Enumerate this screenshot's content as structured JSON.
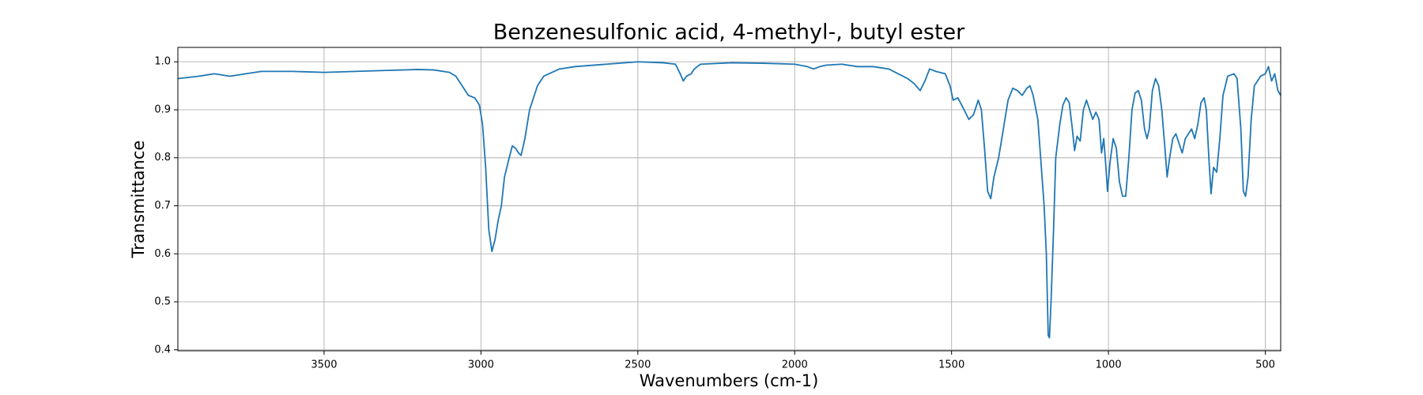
{
  "chart_data": {
    "type": "line",
    "title": "Benzenesulfonic acid, 4-methyl-, butyl ester",
    "x_label": "Wavenumbers (cm-1)",
    "y_label": "Transmittance",
    "color": "#1f77b4",
    "grid": true,
    "xlim": [
      3966,
      451
    ],
    "ylim": [
      0.398,
      1.03
    ],
    "xticks": [
      3500,
      3000,
      2500,
      2000,
      1500,
      1000,
      500
    ],
    "yticks": [
      0.4,
      0.5,
      0.6,
      0.7,
      0.8,
      0.9,
      {
        "value": 1.0,
        "label": "1.0"
      }
    ],
    "x": [
      3966,
      3900,
      3850,
      3800,
      3750,
      3700,
      3650,
      3600,
      3500,
      3400,
      3300,
      3200,
      3150,
      3100,
      3080,
      3060,
      3040,
      3020,
      3005,
      2995,
      2985,
      2975,
      2965,
      2955,
      2945,
      2935,
      2925,
      2910,
      2900,
      2890,
      2880,
      2872,
      2860,
      2845,
      2820,
      2800,
      2750,
      2700,
      2600,
      2500,
      2420,
      2380,
      2365,
      2355,
      2345,
      2330,
      2320,
      2300,
      2200,
      2100,
      2000,
      1960,
      1940,
      1920,
      1900,
      1850,
      1800,
      1750,
      1700,
      1670,
      1640,
      1620,
      1600,
      1585,
      1570,
      1550,
      1520,
      1505,
      1495,
      1480,
      1460,
      1445,
      1430,
      1415,
      1405,
      1395,
      1385,
      1375,
      1365,
      1350,
      1335,
      1320,
      1305,
      1290,
      1275,
      1260,
      1250,
      1240,
      1225,
      1215,
      1205,
      1198,
      1192,
      1188,
      1183,
      1175,
      1168,
      1155,
      1145,
      1135,
      1125,
      1115,
      1108,
      1100,
      1090,
      1080,
      1070,
      1060,
      1050,
      1040,
      1030,
      1022,
      1015,
      1008,
      1003,
      995,
      985,
      975,
      965,
      955,
      945,
      935,
      925,
      915,
      905,
      895,
      885,
      877,
      870,
      860,
      850,
      840,
      830,
      820,
      813,
      805,
      795,
      785,
      775,
      765,
      755,
      745,
      735,
      725,
      715,
      705,
      695,
      688,
      680,
      673,
      665,
      655,
      645,
      635,
      620,
      600,
      590,
      578,
      570,
      563,
      555,
      545,
      535,
      525,
      515,
      500,
      490,
      480,
      470,
      460,
      451
    ],
    "values": [
      0.965,
      0.97,
      0.975,
      0.97,
      0.975,
      0.98,
      0.98,
      0.98,
      0.978,
      0.98,
      0.982,
      0.984,
      0.983,
      0.978,
      0.97,
      0.95,
      0.93,
      0.925,
      0.91,
      0.87,
      0.78,
      0.65,
      0.605,
      0.63,
      0.67,
      0.7,
      0.76,
      0.8,
      0.825,
      0.82,
      0.81,
      0.805,
      0.84,
      0.9,
      0.95,
      0.97,
      0.985,
      0.99,
      0.995,
      1.0,
      0.998,
      0.995,
      0.975,
      0.96,
      0.97,
      0.975,
      0.985,
      0.995,
      0.998,
      0.997,
      0.995,
      0.99,
      0.985,
      0.99,
      0.993,
      0.995,
      0.99,
      0.99,
      0.985,
      0.975,
      0.965,
      0.955,
      0.94,
      0.96,
      0.985,
      0.98,
      0.975,
      0.95,
      0.92,
      0.925,
      0.9,
      0.88,
      0.89,
      0.92,
      0.9,
      0.82,
      0.73,
      0.715,
      0.76,
      0.8,
      0.86,
      0.92,
      0.945,
      0.94,
      0.93,
      0.945,
      0.95,
      0.93,
      0.88,
      0.79,
      0.7,
      0.6,
      0.43,
      0.425,
      0.5,
      0.65,
      0.8,
      0.87,
      0.91,
      0.925,
      0.915,
      0.86,
      0.815,
      0.845,
      0.835,
      0.9,
      0.92,
      0.9,
      0.88,
      0.895,
      0.88,
      0.81,
      0.84,
      0.78,
      0.73,
      0.79,
      0.84,
      0.82,
      0.75,
      0.72,
      0.72,
      0.8,
      0.9,
      0.935,
      0.94,
      0.92,
      0.86,
      0.84,
      0.86,
      0.94,
      0.965,
      0.95,
      0.9,
      0.82,
      0.76,
      0.8,
      0.84,
      0.85,
      0.83,
      0.81,
      0.84,
      0.85,
      0.86,
      0.84,
      0.87,
      0.915,
      0.925,
      0.9,
      0.8,
      0.725,
      0.78,
      0.77,
      0.84,
      0.93,
      0.97,
      0.975,
      0.965,
      0.86,
      0.73,
      0.72,
      0.76,
      0.88,
      0.95,
      0.96,
      0.97,
      0.975,
      0.99,
      0.96,
      0.975,
      0.94,
      0.93
    ]
  }
}
